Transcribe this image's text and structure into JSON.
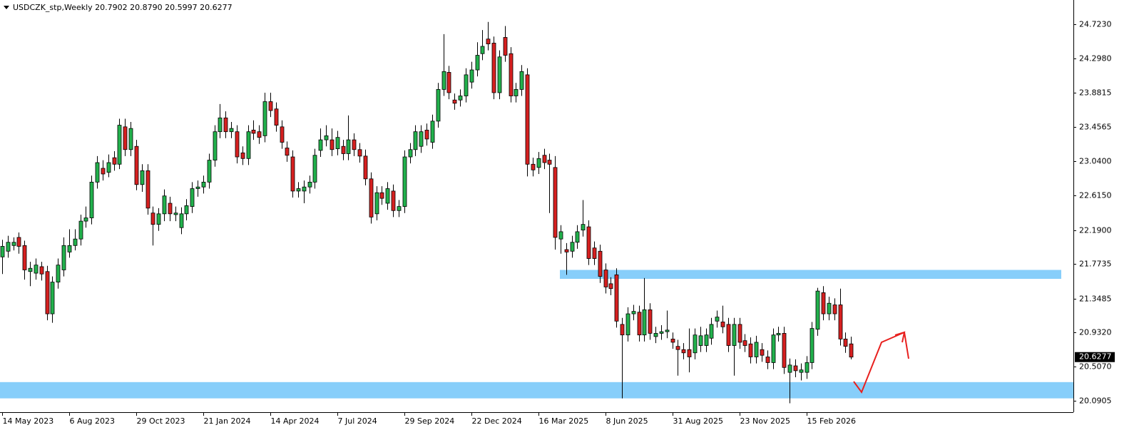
{
  "chart_data": {
    "type": "candlestick",
    "title": "USDCZK_stp,Weekly  20.7902 20.8790 20.5997 20.6277",
    "categories": [
      "14 May 2023",
      null,
      null,
      null,
      null,
      null,
      null,
      null,
      null,
      null,
      null,
      null,
      "6 Aug 2023",
      null,
      null,
      null,
      null,
      null,
      null,
      null,
      null,
      null,
      null,
      null,
      "29 Oct 2023",
      null,
      null,
      null,
      null,
      null,
      null,
      null,
      null,
      null,
      null,
      null,
      "21 Jan 2024",
      null,
      null,
      null,
      null,
      null,
      null,
      null,
      null,
      null,
      null,
      null,
      "14 Apr 2024",
      null,
      null,
      null,
      null,
      null,
      null,
      null,
      null,
      null,
      null,
      null,
      "7 Jul 2024",
      null,
      null,
      null,
      null,
      null,
      null,
      null,
      null,
      null,
      null,
      null,
      "29 Sep 2024",
      null,
      null,
      null,
      null,
      null,
      null,
      null,
      null,
      null,
      null,
      null,
      "22 Dec 2024",
      null,
      null,
      null,
      null,
      null,
      null,
      null,
      null,
      null,
      null,
      null,
      "16 Mar 2025",
      null,
      null,
      null,
      null,
      null,
      null,
      null,
      null,
      null,
      null,
      null,
      "8 Jun 2025",
      null,
      null,
      null,
      null,
      null,
      null,
      null,
      null,
      null,
      null,
      null,
      "31 Aug 2025",
      null,
      null,
      null,
      null,
      null,
      null,
      null,
      null,
      null,
      null,
      null,
      "23 Nov 2025",
      null,
      null,
      null,
      null,
      null,
      null,
      null,
      null,
      null,
      null,
      null,
      "15 Feb 2026",
      null,
      null,
      null,
      null,
      null,
      null,
      null,
      null
    ],
    "open": [
      21.86,
      21.93,
      22.0,
      22.1,
      22.0,
      21.68,
      21.66,
      21.74,
      21.68,
      21.16,
      21.55,
      21.7,
      21.92,
      22.0,
      22.08,
      22.3,
      22.34,
      22.78,
      22.95,
      22.9,
      23.08,
      23.0,
      23.46,
      23.18,
      23.22,
      22.75,
      22.92,
      22.4,
      22.26,
      22.39,
      22.52,
      22.38,
      22.22,
      22.39,
      22.48,
      22.7,
      22.72,
      22.78,
      23.05,
      23.4,
      23.57,
      23.4,
      23.4,
      23.14,
      23.07,
      23.42,
      23.4,
      23.35,
      23.77,
      23.68,
      23.46,
      23.2,
      23.09,
      22.67,
      22.67,
      22.72,
      22.78,
      23.17,
      23.3,
      23.3,
      23.19,
      23.22,
      23.13,
      23.3,
      23.18,
      23.1,
      22.82,
      22.39,
      22.65,
      22.52,
      22.67,
      22.43,
      22.48,
      23.09,
      23.18,
      23.22,
      23.42,
      23.27,
      23.53,
      23.92,
      24.13,
      23.79,
      23.79,
      23.84,
      24.01,
      24.16,
      24.36,
      24.54,
      24.49,
      23.88,
      24.56,
      24.36,
      23.84,
      23.92,
      24.1,
      23.0,
      22.96,
      23.11,
      23.05,
      22.96,
      22.08,
      21.95,
      21.93,
      22.04,
      22.19,
      22.23,
      21.97,
      21.93,
      21.7,
      21.53,
      21.64,
      21.03,
      20.9,
      21.16,
      21.18,
      20.9,
      21.21,
      20.88,
      20.92,
      20.94,
      20.85,
      20.76,
      20.72,
      20.72,
      20.68,
      20.77,
      20.77,
      20.86,
      21.07,
      21.06,
      21.03,
      20.77,
      21.03,
      20.83,
      20.79,
      20.63,
      20.72,
      20.63,
      20.56,
      20.9,
      20.92,
      20.44,
      20.52,
      20.44,
      20.44,
      20.56,
      20.97,
      21.42,
      21.16,
      21.27,
      21.27,
      20.85,
      20.7902
    ],
    "close": [
      21.99,
      22.04,
      22.04,
      21.99,
      21.7,
      21.72,
      21.76,
      21.65,
      21.16,
      21.55,
      21.76,
      22.0,
      22.0,
      22.08,
      22.3,
      22.34,
      22.78,
      23.02,
      22.88,
      23.02,
      23.0,
      23.48,
      23.18,
      23.44,
      22.75,
      22.92,
      22.46,
      22.26,
      22.39,
      22.61,
      22.39,
      22.4,
      22.39,
      22.49,
      22.7,
      22.72,
      22.78,
      23.05,
      23.4,
      23.57,
      23.4,
      23.44,
      23.09,
      23.07,
      23.4,
      23.38,
      23.33,
      23.77,
      23.66,
      23.48,
      23.27,
      23.11,
      22.67,
      22.7,
      22.72,
      22.78,
      23.11,
      23.3,
      23.35,
      23.18,
      23.33,
      23.13,
      23.3,
      23.18,
      23.1,
      22.82,
      22.35,
      22.65,
      22.58,
      22.7,
      22.43,
      22.48,
      23.09,
      23.18,
      23.4,
      23.4,
      23.31,
      23.53,
      23.92,
      24.14,
      23.88,
      23.75,
      23.84,
      24.1,
      24.16,
      24.34,
      24.45,
      24.48,
      23.88,
      24.32,
      24.34,
      23.84,
      23.92,
      24.14,
      23.0,
      22.93,
      23.07,
      23.02,
      23.0,
      22.1,
      22.17,
      21.92,
      22.04,
      22.17,
      22.26,
      21.84,
      21.84,
      21.62,
      21.49,
      21.47,
      21.07,
      20.9,
      21.16,
      21.19,
      20.9,
      21.21,
      20.92,
      20.92,
      20.94,
      20.96,
      20.81,
      20.72,
      20.68,
      20.63,
      20.9,
      20.89,
      20.9,
      21.03,
      21.12,
      21.0,
      20.77,
      21.03,
      20.81,
      20.77,
      20.63,
      20.81,
      20.65,
      20.56,
      20.9,
      20.92,
      20.5,
      20.53,
      20.46,
      20.47,
      20.56,
      20.98,
      21.44,
      21.16,
      21.29,
      21.16,
      20.85,
      20.76,
      20.6277
    ],
    "high": [
      22.07,
      22.12,
      22.1,
      22.16,
      22.06,
      21.8,
      21.84,
      21.8,
      21.75,
      21.62,
      21.84,
      22.1,
      22.2,
      22.2,
      22.38,
      22.48,
      22.86,
      23.1,
      23.05,
      23.12,
      23.16,
      23.56,
      23.56,
      23.52,
      23.3,
      23.0,
      23.0,
      22.48,
      22.46,
      22.69,
      22.6,
      22.48,
      22.47,
      22.57,
      22.78,
      22.8,
      22.86,
      23.13,
      23.48,
      23.74,
      23.65,
      23.52,
      23.48,
      23.22,
      23.48,
      23.54,
      23.48,
      23.88,
      23.88,
      23.76,
      23.54,
      23.28,
      23.17,
      22.78,
      22.8,
      22.86,
      23.19,
      23.44,
      23.48,
      23.44,
      23.41,
      23.3,
      23.6,
      23.38,
      23.26,
      23.18,
      22.9,
      22.73,
      22.73,
      22.78,
      22.75,
      22.56,
      23.17,
      23.26,
      23.48,
      23.48,
      23.5,
      23.61,
      24.0,
      24.6,
      24.21,
      23.87,
      23.92,
      24.18,
      24.26,
      24.5,
      24.65,
      24.75,
      24.57,
      24.4,
      24.7,
      24.44,
      24.0,
      24.22,
      24.18,
      23.08,
      23.15,
      23.19,
      23.13,
      23.1,
      22.25,
      22.03,
      22.12,
      22.25,
      22.56,
      22.31,
      22.05,
      22.01,
      21.78,
      21.61,
      21.72,
      21.11,
      21.24,
      21.27,
      21.26,
      21.6,
      21.29,
      21.0,
      21.02,
      21.2,
      20.93,
      20.84,
      20.8,
      20.98,
      20.98,
      21.0,
      20.98,
      21.11,
      21.2,
      21.26,
      21.11,
      21.11,
      21.11,
      20.91,
      20.87,
      20.89,
      20.8,
      20.71,
      20.98,
      21.0,
      21.0,
      20.61,
      20.6,
      20.55,
      20.64,
      21.06,
      21.48,
      21.5,
      21.37,
      21.35,
      21.47,
      20.93,
      20.879
    ],
    "low": [
      21.65,
      21.85,
      21.94,
      21.9,
      21.58,
      21.5,
      21.58,
      21.57,
      21.08,
      21.05,
      21.47,
      21.62,
      21.85,
      21.94,
      22.0,
      22.22,
      22.26,
      22.7,
      22.8,
      22.84,
      22.92,
      22.94,
      23.1,
      23.1,
      22.68,
      22.66,
      22.38,
      22.0,
      22.18,
      22.3,
      22.3,
      22.3,
      22.14,
      22.31,
      22.4,
      22.6,
      22.64,
      22.7,
      22.97,
      23.32,
      23.32,
      23.32,
      23.01,
      22.99,
      22.99,
      23.3,
      23.25,
      23.27,
      23.58,
      23.4,
      23.19,
      23.03,
      22.59,
      22.59,
      22.52,
      22.64,
      22.7,
      23.09,
      23.22,
      23.1,
      23.11,
      23.05,
      23.05,
      23.1,
      23.02,
      22.74,
      22.27,
      22.31,
      22.5,
      22.44,
      22.35,
      22.35,
      22.4,
      23.01,
      23.1,
      23.14,
      23.23,
      23.19,
      23.45,
      23.84,
      23.8,
      23.67,
      23.71,
      23.76,
      23.93,
      24.08,
      24.28,
      24.4,
      23.8,
      23.8,
      24.26,
      23.76,
      23.76,
      23.84,
      22.85,
      22.85,
      22.88,
      22.94,
      22.4,
      21.95,
      21.9,
      21.64,
      21.85,
      21.96,
      22.11,
      21.76,
      21.76,
      21.54,
      21.41,
      21.39,
      20.99,
      20.12,
      20.82,
      21.08,
      20.82,
      20.82,
      20.84,
      20.8,
      20.84,
      20.86,
      20.73,
      20.4,
      20.6,
      20.44,
      20.6,
      20.69,
      20.69,
      20.78,
      20.99,
      20.92,
      20.69,
      20.4,
      20.73,
      20.69,
      20.55,
      20.55,
      20.57,
      20.48,
      20.48,
      20.82,
      20.42,
      20.06,
      20.38,
      20.34,
      20.36,
      20.48,
      20.89,
      21.08,
      21.08,
      21.08,
      20.77,
      20.68,
      20.5997
    ],
    "up_color": "#22b14c",
    "down_color": "#d62020",
    "ylim": [
      19.95,
      25.02
    ],
    "yticks": [
      {
        "value": 24.723,
        "label": "24.7230"
      },
      {
        "value": 24.298,
        "label": "24.2980"
      },
      23.8815,
      23.4565,
      {
        "value": 23.04,
        "label": "23.0400"
      },
      {
        "value": 22.615,
        "label": "22.6150"
      },
      {
        "value": 22.19,
        "label": "22.1900"
      },
      21.7735,
      21.3485,
      {
        "value": 20.932,
        "label": "20.9320"
      },
      {
        "value": 20.507,
        "label": "20.5070"
      },
      20.0905
    ],
    "last_price": 20.6277,
    "zones": [
      {
        "high": 21.7,
        "low": 21.59,
        "color": "#87cefa"
      },
      {
        "high": 20.32,
        "low": 20.12,
        "color": "#87cefa"
      }
    ]
  }
}
